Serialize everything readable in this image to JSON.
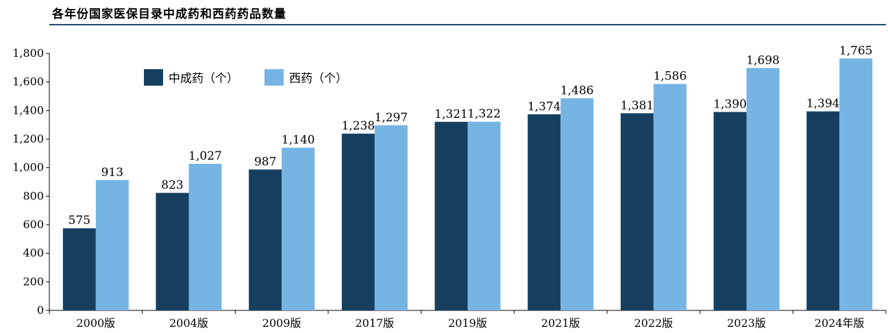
{
  "title": "各年份国家医保目录中成药和西药药品数量",
  "chart_data": {
    "type": "bar",
    "categories": [
      "2000版",
      "2004版",
      "2009版",
      "2017版",
      "2019版",
      "2021版",
      "2022版",
      "2023版",
      "2024年版"
    ],
    "series": [
      {
        "name": "中成药（个）",
        "color": "#163f5f",
        "values": [
          575,
          823,
          987,
          1238,
          1321,
          1374,
          1381,
          1390,
          1394
        ]
      },
      {
        "name": "西药（个）",
        "color": "#76b4e3",
        "values": [
          913,
          1027,
          1140,
          1297,
          1322,
          1486,
          1586,
          1698,
          1765
        ]
      }
    ],
    "ylim": [
      0,
      1800
    ],
    "yticks": [
      0,
      200,
      400,
      600,
      800,
      1000,
      1200,
      1400,
      1600,
      1800
    ],
    "ytick_labels": [
      "0",
      "200",
      "400",
      "600",
      "800",
      "1,000",
      "1,200",
      "1,400",
      "1,600",
      "1,800"
    ],
    "data_labels": [
      [
        "575",
        "823",
        "987",
        "1,238",
        "1,321",
        "1,374",
        "1,381",
        "1,390",
        "1,394"
      ],
      [
        "913",
        "1,027",
        "1,140",
        "1,297",
        "1,322",
        "1,486",
        "1,586",
        "1,698",
        "1,765"
      ]
    ],
    "legend_position": "top-left",
    "grid": false
  }
}
